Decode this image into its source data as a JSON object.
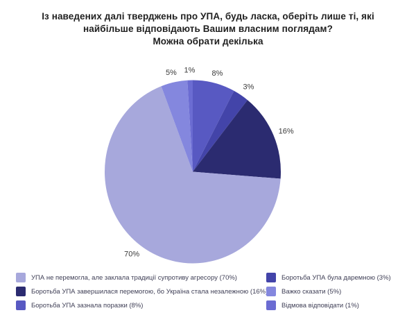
{
  "page": {
    "background": "#ffffff"
  },
  "title": {
    "lines": [
      "Із наведених далі тверджень про УПА, будь ласка, оберіть лише ті, які",
      "найбільше відповідають Вашим власним поглядам?",
      "Можна обрати декілька"
    ]
  },
  "chart_data": {
    "type": "pie",
    "title": "Із наведених далі тверджень про УПА, будь ласка, оберіть лише ті, які найбільше відповідають Вашим власним поглядам? Можна обрати декілька",
    "unit": "%",
    "start_angle_deg": 0,
    "direction": "clockwise",
    "legend_position": "bottom",
    "slices": [
      {
        "label": "Боротьба УПА зазнала поразки",
        "value": 8,
        "value_label": "8%",
        "color": "#5859c2"
      },
      {
        "label": "Боротьба УПА була даремною",
        "value": 3,
        "value_label": "3%",
        "color": "#4344a9"
      },
      {
        "label": "Боротьба УПА завершилася перемогою, бо Україна стала незалежною",
        "value": 16,
        "value_label": "16%",
        "color": "#2b2b70"
      },
      {
        "label": "УПА не перемогла, але заклала традиції супротиву агресору",
        "value": 70,
        "value_label": "70%",
        "color": "#a7a8dc"
      },
      {
        "label": "Важко сказати",
        "value": 5,
        "value_label": "5%",
        "color": "#8487de"
      },
      {
        "label": "Відмова відповідати",
        "value": 1,
        "value_label": "1%",
        "color": "#6b6cd2"
      }
    ]
  },
  "legend": {
    "columns": [
      {
        "items": [
          {
            "label": "УПА не перемогла, але заклала традиції супротиву агресору (70%)",
            "color": "#a7a8dc"
          },
          {
            "label": "Боротьба УПА завершилася перемогою, бо Україна стала незалежною (16%)",
            "color": "#2b2b70"
          },
          {
            "label": "Боротьба УПА зазнала поразки (8%)",
            "color": "#5859c2"
          }
        ]
      },
      {
        "items": [
          {
            "label": "Боротьба УПА була даремною (3%)",
            "color": "#4344a9"
          },
          {
            "label": "Важко сказати (5%)",
            "color": "#8487de"
          },
          {
            "label": "Відмова відповідати (1%)",
            "color": "#6b6cd2"
          }
        ]
      }
    ]
  }
}
